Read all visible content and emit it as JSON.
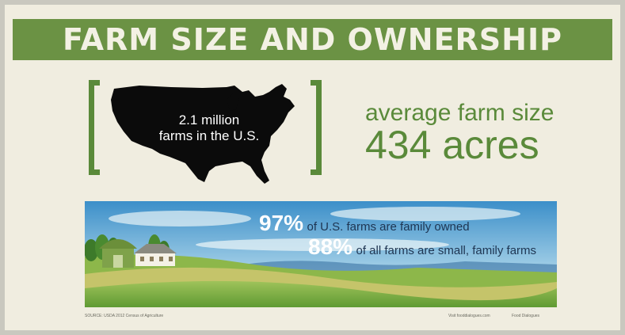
{
  "title": "FARM SIZE AND OWNERSHIP",
  "map": {
    "line1": "2.1 million",
    "line2": "farms in the U.S."
  },
  "average": {
    "label": "average farm size",
    "value": "434 acres"
  },
  "stats": [
    {
      "percent": "97%",
      "text": "of U.S. farms are family owned"
    },
    {
      "percent": "88%",
      "text": "of all farms are small, family farms"
    }
  ],
  "footer": {
    "source": "SOURCE: USDA 2012 Census of Agriculture",
    "website": "Visit fooddialogues.com",
    "brand": "Food Dialogues"
  },
  "colors": {
    "title_bar": "#6b9244",
    "accent_green": "#5a8a3a",
    "background": "#f0ede0"
  },
  "icons": [
    "us-map-icon",
    "barn-icon",
    "farmhouse-icon",
    "tree-icon"
  ]
}
